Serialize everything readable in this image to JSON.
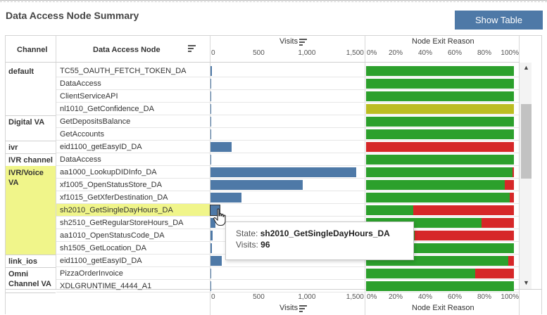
{
  "title": "Data Access Node Summary",
  "show_table_label": "Show Table",
  "headers": {
    "channel": "Channel",
    "node": "Data Access Node",
    "visits": "Visits",
    "exit_reason": "Node Exit Reason"
  },
  "visit_ticks": [
    "0",
    "500",
    "1,000",
    "1,500"
  ],
  "pct_ticks": [
    "0%",
    "20%",
    "40%",
    "60%",
    "80%",
    "100%"
  ],
  "colors": {
    "accent": "#4e79a7",
    "green": "#2ca02c",
    "red": "#d62728",
    "olive": "#bcbd22",
    "highlight": "#f0f58a"
  },
  "chart_data": {
    "type": "bar",
    "visits_axis": {
      "label": "Visits",
      "xlim": [
        0,
        1600
      ]
    },
    "exit_axis": {
      "label": "Node Exit Reason",
      "xlim": [
        0,
        100
      ]
    },
    "rows": [
      {
        "channel": "default",
        "node": "TC55_OAUTH_FETCH_TOKEN_DA",
        "visits": 5,
        "segments": [
          {
            "color": "green",
            "pct": 100
          }
        ]
      },
      {
        "channel": "",
        "node": "DataAccess",
        "visits": 0,
        "segments": [
          {
            "color": "green",
            "pct": 100
          }
        ]
      },
      {
        "channel": "",
        "node": "ClientServiceAPI",
        "visits": 0,
        "segments": [
          {
            "color": "green",
            "pct": 100
          }
        ]
      },
      {
        "channel": "",
        "node": "nl1010_GetConfidence_DA",
        "visits": 0,
        "segments": [
          {
            "color": "olive",
            "pct": 100
          }
        ]
      },
      {
        "channel": "Digital VA",
        "node": "GetDepositsBalance",
        "visits": 0,
        "segments": [
          {
            "color": "green",
            "pct": 100
          }
        ]
      },
      {
        "channel": "",
        "node": "GetAccounts",
        "visits": 0,
        "segments": [
          {
            "color": "green",
            "pct": 100
          }
        ]
      },
      {
        "channel": "ivr",
        "node": "eid1100_getEasyID_DA",
        "visits": 220,
        "segments": [
          {
            "color": "red",
            "pct": 100
          }
        ]
      },
      {
        "channel": "IVR channel",
        "node": "DataAccess",
        "visits": 0,
        "segments": [
          {
            "color": "green",
            "pct": 100
          }
        ]
      },
      {
        "channel": "IVR/Voice VA",
        "node": "aa1000_LookupDIDInfo_DA",
        "visits": 1510,
        "segments": [
          {
            "color": "green",
            "pct": 99
          },
          {
            "color": "red",
            "pct": 1
          }
        ]
      },
      {
        "channel": "",
        "node": "xf1005_OpenStatusStore_DA",
        "visits": 960,
        "segments": [
          {
            "color": "green",
            "pct": 94
          },
          {
            "color": "red",
            "pct": 6
          }
        ]
      },
      {
        "channel": "",
        "node": "xf1015_GetXferDestination_DA",
        "visits": 320,
        "segments": [
          {
            "color": "green",
            "pct": 97
          },
          {
            "color": "red",
            "pct": 3
          }
        ]
      },
      {
        "channel": "",
        "node": "sh2010_GetSingleDayHours_DA",
        "visits": 96,
        "segments": [
          {
            "color": "green",
            "pct": 32
          },
          {
            "color": "red",
            "pct": 68
          }
        ]
      },
      {
        "channel": "",
        "node": "sh2510_GetRegularStoreHours_DA",
        "visits": 50,
        "segments": [
          {
            "color": "green",
            "pct": 78
          },
          {
            "color": "red",
            "pct": 22
          }
        ]
      },
      {
        "channel": "",
        "node": "aa1010_OpenStatusCode_DA",
        "visits": 20,
        "segments": [
          {
            "color": "green",
            "pct": 33
          },
          {
            "color": "red",
            "pct": 67
          }
        ]
      },
      {
        "channel": "",
        "node": "sh1505_GetLocation_DA",
        "visits": 10,
        "segments": [
          {
            "color": "green",
            "pct": 100
          }
        ]
      },
      {
        "channel": "link_ios",
        "node": "eid1100_getEasyID_DA",
        "visits": 120,
        "segments": [
          {
            "color": "green",
            "pct": 96
          },
          {
            "color": "red",
            "pct": 4
          }
        ]
      },
      {
        "channel": "Omni Channel VA",
        "node": "PizzaOrderInvoice",
        "visits": 0,
        "segments": [
          {
            "color": "green",
            "pct": 74
          },
          {
            "color": "red",
            "pct": 26
          }
        ]
      },
      {
        "channel": "",
        "node": "XDLGRUNTIME_4444_A1",
        "visits": 0,
        "segments": [
          {
            "color": "green",
            "pct": 100
          }
        ]
      }
    ]
  },
  "tooltip": {
    "state_key": "State:",
    "state_value": "sh2010_GetSingleDayHours_DA",
    "visits_key": "Visits:",
    "visits_value": "96"
  }
}
